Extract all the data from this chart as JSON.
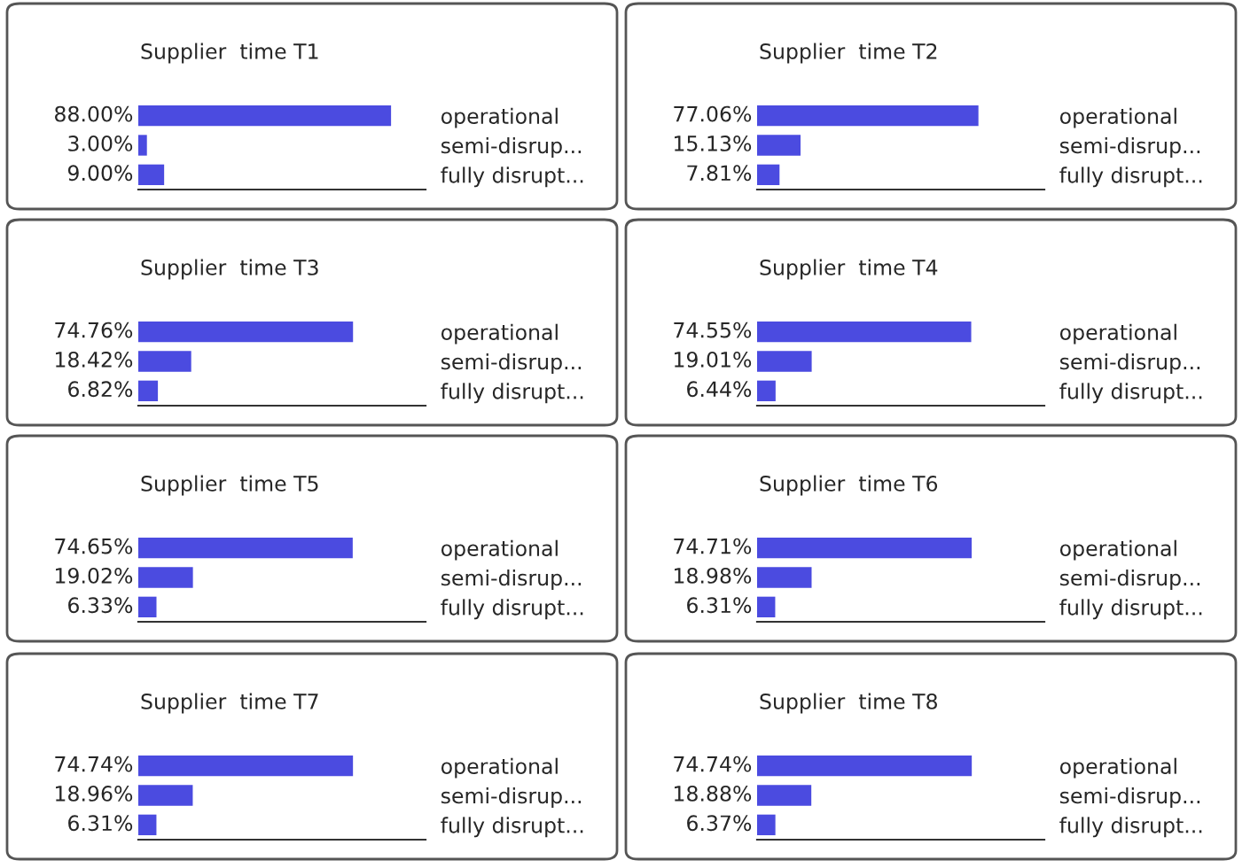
{
  "chart_data": [
    {
      "type": "bar",
      "orientation": "horizontal",
      "title": "Supplier  time T1",
      "categories": [
        "operational",
        "semi-disrup...",
        "fully disrupt..."
      ],
      "values": [
        88.0,
        3.0,
        9.0
      ],
      "value_labels": [
        "88.00%",
        "3.00%",
        "9.00%"
      ],
      "color": "#4b4be0",
      "xlim": [
        0,
        100
      ]
    },
    {
      "type": "bar",
      "orientation": "horizontal",
      "title": "Supplier  time T2",
      "categories": [
        "operational",
        "semi-disrup...",
        "fully disrupt..."
      ],
      "values": [
        77.06,
        15.13,
        7.81
      ],
      "value_labels": [
        "77.06%",
        "15.13%",
        "7.81%"
      ],
      "color": "#4b4be0",
      "xlim": [
        0,
        100
      ]
    },
    {
      "type": "bar",
      "orientation": "horizontal",
      "title": "Supplier  time T3",
      "categories": [
        "operational",
        "semi-disrup...",
        "fully disrupt..."
      ],
      "values": [
        74.76,
        18.42,
        6.82
      ],
      "value_labels": [
        "74.76%",
        "18.42%",
        "6.82%"
      ],
      "color": "#4b4be0",
      "xlim": [
        0,
        100
      ]
    },
    {
      "type": "bar",
      "orientation": "horizontal",
      "title": "Supplier  time T4",
      "categories": [
        "operational",
        "semi-disrup...",
        "fully disrupt..."
      ],
      "values": [
        74.55,
        19.01,
        6.44
      ],
      "value_labels": [
        "74.55%",
        "19.01%",
        "6.44%"
      ],
      "color": "#4b4be0",
      "xlim": [
        0,
        100
      ]
    },
    {
      "type": "bar",
      "orientation": "horizontal",
      "title": "Supplier  time T5",
      "categories": [
        "operational",
        "semi-disrup...",
        "fully disrupt..."
      ],
      "values": [
        74.65,
        19.02,
        6.33
      ],
      "value_labels": [
        "74.65%",
        "19.02%",
        "6.33%"
      ],
      "color": "#4b4be0",
      "xlim": [
        0,
        100
      ]
    },
    {
      "type": "bar",
      "orientation": "horizontal",
      "title": "Supplier  time T6",
      "categories": [
        "operational",
        "semi-disrup...",
        "fully disrupt..."
      ],
      "values": [
        74.71,
        18.98,
        6.31
      ],
      "value_labels": [
        "74.71%",
        "18.98%",
        "6.31%"
      ],
      "color": "#4b4be0",
      "xlim": [
        0,
        100
      ]
    },
    {
      "type": "bar",
      "orientation": "horizontal",
      "title": "Supplier  time T7",
      "categories": [
        "operational",
        "semi-disrup...",
        "fully disrupt..."
      ],
      "values": [
        74.74,
        18.96,
        6.31
      ],
      "value_labels": [
        "74.74%",
        "18.96%",
        "6.31%"
      ],
      "color": "#4b4be0",
      "xlim": [
        0,
        100
      ]
    },
    {
      "type": "bar",
      "orientation": "horizontal",
      "title": "Supplier  time T8",
      "categories": [
        "operational",
        "semi-disrup...",
        "fully disrupt..."
      ],
      "values": [
        74.74,
        18.88,
        6.37
      ],
      "value_labels": [
        "74.74%",
        "18.88%",
        "6.37%"
      ],
      "color": "#4b4be0",
      "xlim": [
        0,
        100
      ]
    }
  ]
}
